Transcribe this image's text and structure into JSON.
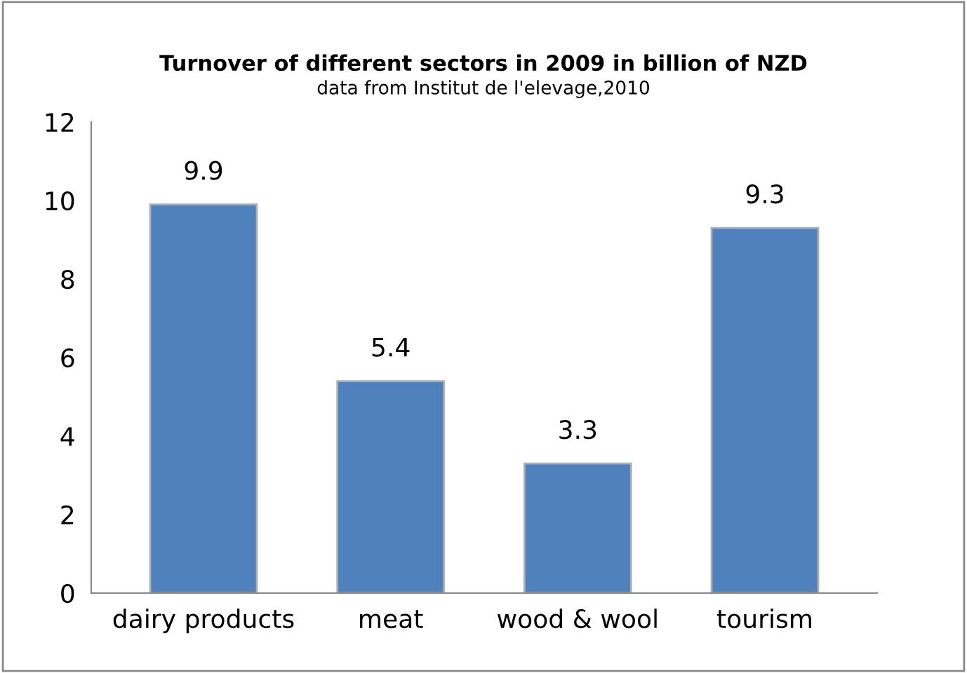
{
  "chart_data": {
    "type": "bar",
    "title": "Turnover of different sectors in 2009 in billion of NZD",
    "subtitle": "data from Institut de l'elevage,2010",
    "categories": [
      "dairy products",
      "meat",
      "wood & wool",
      "tourism"
    ],
    "values": [
      9.9,
      5.4,
      3.3,
      9.3
    ],
    "color": "#4f81bd",
    "ylim": [
      0,
      12
    ],
    "yticks": [
      0,
      2,
      4,
      6,
      8,
      10,
      12
    ],
    "grid": false,
    "data_labels": true
  }
}
